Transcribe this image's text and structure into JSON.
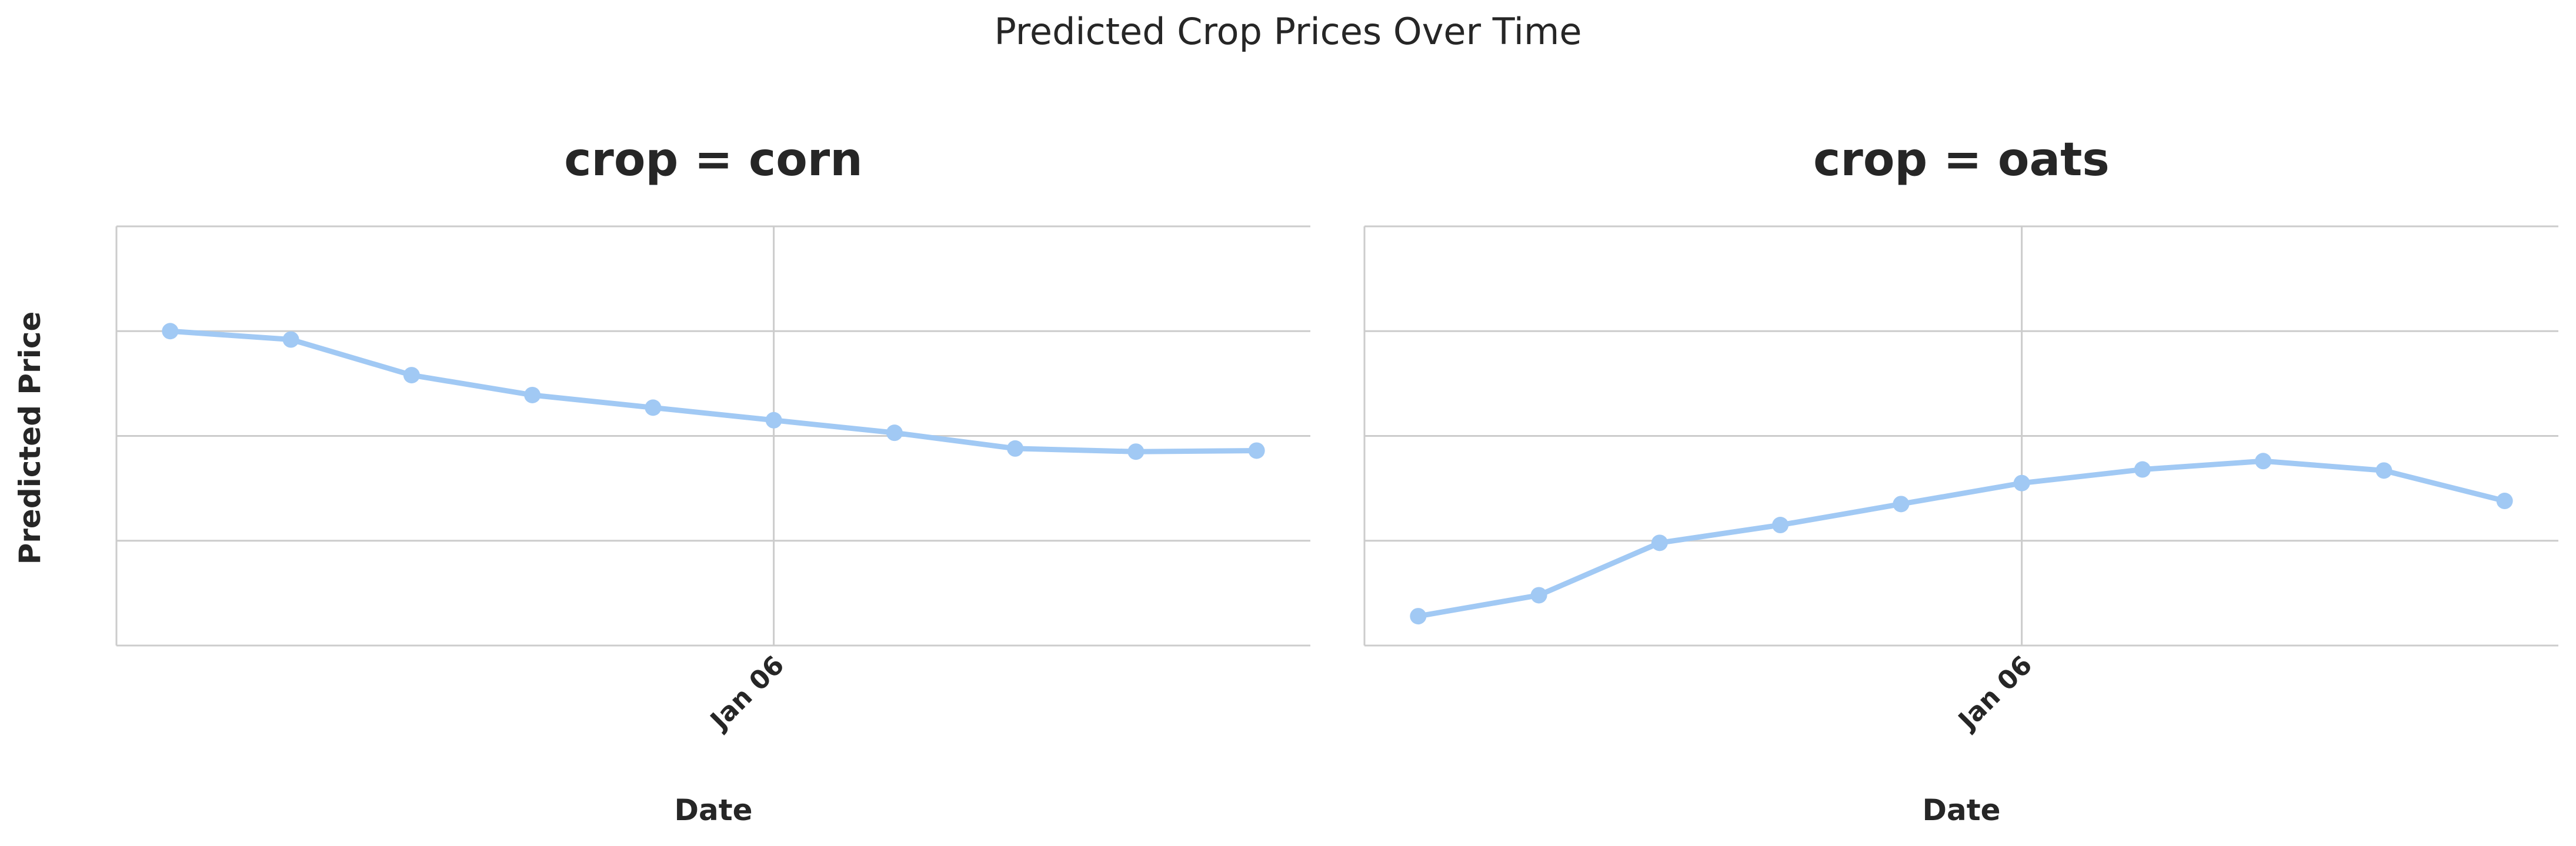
{
  "chart_data": {
    "type": "line",
    "title": "Predicted Crop Prices Over Time",
    "ylabel": "Predicted Price",
    "xlabel": "Date",
    "ylim": [
      0,
      4
    ],
    "yticks": [
      1,
      2,
      3
    ],
    "show_ytick_labels": false,
    "grid": true,
    "color": "#a1c9f4",
    "x": [
      "Jan 01",
      "Jan 02",
      "Jan 03",
      "Jan 04",
      "Jan 05",
      "Jan 06",
      "Jan 07",
      "Jan 08",
      "Jan 09",
      "Jan 10"
    ],
    "xticks": [
      "Jan 06"
    ],
    "panels": [
      {
        "title": "crop = corn",
        "values": [
          3.0,
          2.92,
          2.58,
          2.39,
          2.27,
          2.15,
          2.03,
          1.88,
          1.85,
          1.86
        ]
      },
      {
        "title": "crop = oats",
        "values": [
          0.28,
          0.48,
          0.98,
          1.15,
          1.35,
          1.55,
          1.68,
          1.76,
          1.67,
          1.38
        ]
      }
    ]
  }
}
